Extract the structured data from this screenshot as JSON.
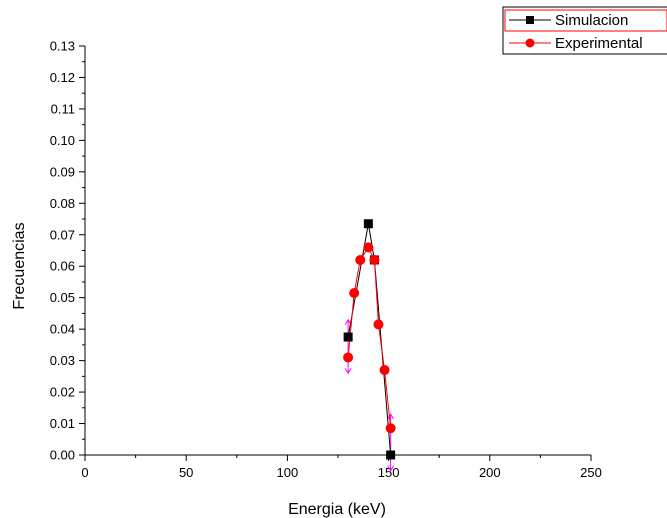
{
  "chart_data": {
    "type": "line",
    "title": "",
    "xlabel": "Energia (keV)",
    "ylabel": "Frecuencias",
    "xlim": [
      0,
      250
    ],
    "ylim": [
      0,
      0.13
    ],
    "x_ticks": [
      "0",
      "50",
      "100",
      "150",
      "200",
      "250"
    ],
    "y_ticks": [
      "0.00",
      "0.01",
      "0.02",
      "0.03",
      "0.04",
      "0.05",
      "0.06",
      "0.07",
      "0.08",
      "0.09",
      "0.10",
      "0.11",
      "0.12",
      "0.13"
    ],
    "grid": false,
    "legend_position": "top-right",
    "series": [
      {
        "name": "Simulacion",
        "color": "#000000",
        "marker": "square",
        "x": [
          130,
          140,
          143,
          151
        ],
        "y": [
          0.0375,
          0.0735,
          0.062,
          0.0
        ]
      },
      {
        "name": "Experimental",
        "color": "#ff0000",
        "marker": "circle",
        "x": [
          130,
          133,
          136,
          140,
          143,
          145,
          148,
          151
        ],
        "y": [
          0.031,
          0.0515,
          0.062,
          0.066,
          0.062,
          0.0415,
          0.027,
          0.0085
        ]
      }
    ],
    "error_bars": {
      "color": "#ff00ff",
      "points": [
        {
          "x": 130,
          "low": 0.026,
          "high": 0.043
        },
        {
          "x": 151,
          "low": -0.005,
          "high": 0.013
        }
      ]
    }
  }
}
